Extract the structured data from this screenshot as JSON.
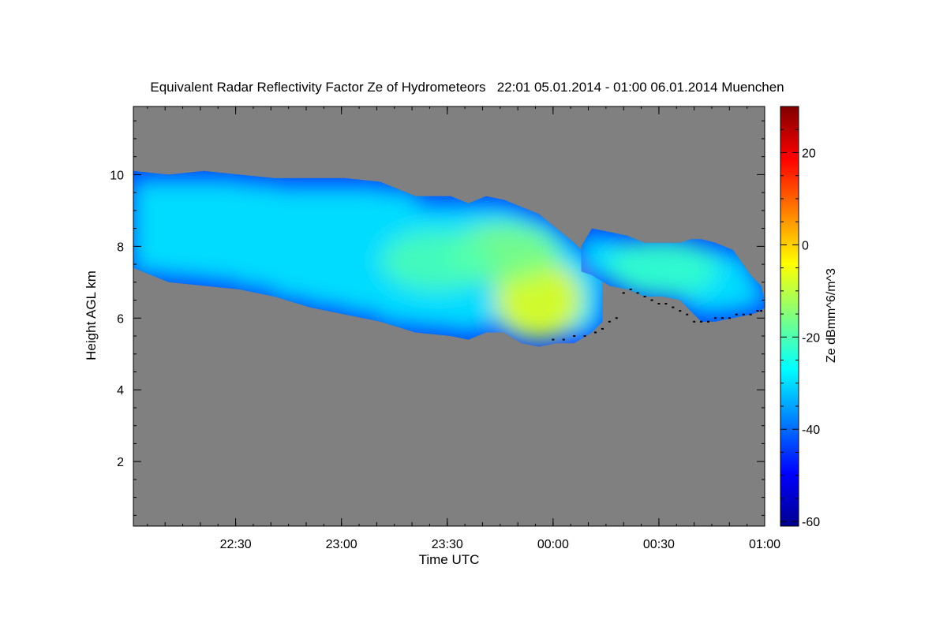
{
  "chart_data": {
    "type": "heatmap",
    "title": "Equivalent Radar Reflectivity Factor Ze of Hydrometeors   22:01 05.01.2014 - 01:00 06.01.2014 Muenchen",
    "xlabel": "Time UTC",
    "ylabel": "Height AGL km",
    "colorbar_label": "Ze dBmm^6/m^3",
    "x_start": "22:01",
    "x_end": "01:00",
    "x_ticks": [
      "22:30",
      "23:00",
      "23:30",
      "00:00",
      "00:30",
      "01:00"
    ],
    "xlim_minutes": [
      0,
      179
    ],
    "x_tick_minutes": [
      29,
      59,
      89,
      119,
      149,
      179
    ],
    "ylim": [
      0.2,
      11.9
    ],
    "y_ticks": [
      2,
      4,
      6,
      8,
      10
    ],
    "y_tick_labels": [
      "2",
      "4",
      "6",
      "8",
      "10"
    ],
    "clim": [
      -61,
      30
    ],
    "colorbar_ticks": [
      -60,
      -40,
      -20,
      0,
      20
    ],
    "colorbar_tick_labels": [
      "-60",
      "-40",
      "-20",
      "0",
      "20"
    ],
    "colormap": "jet",
    "background_color": "#808080",
    "cloud_layers": [
      {
        "name": "main",
        "x": [
          0,
          10,
          20,
          30,
          40,
          50,
          60,
          70,
          80,
          90,
          95,
          100,
          105,
          110,
          115,
          120,
          125,
          130,
          133
        ],
        "top_km": [
          10.1,
          10.0,
          10.1,
          10.0,
          9.9,
          9.9,
          9.9,
          9.8,
          9.4,
          9.4,
          9.2,
          9.4,
          9.3,
          9.1,
          8.9,
          8.5,
          8.1,
          7.6,
          7.5
        ],
        "base_km": [
          7.4,
          7.0,
          6.9,
          6.8,
          6.6,
          6.3,
          6.1,
          5.9,
          5.6,
          5.5,
          5.4,
          5.6,
          5.6,
          5.3,
          5.2,
          5.3,
          5.3,
          5.6,
          5.9
        ]
      },
      {
        "name": "after_midnight",
        "x": [
          127,
          130,
          135,
          140,
          145,
          150,
          155,
          158,
          161,
          165,
          170,
          175,
          178,
          179
        ],
        "top_km": [
          8.0,
          8.5,
          8.4,
          8.3,
          8.1,
          8.1,
          8.1,
          8.2,
          8.2,
          8.1,
          7.9,
          7.2,
          6.9,
          6.5
        ],
        "base_km": [
          7.3,
          7.2,
          6.9,
          6.8,
          6.6,
          6.6,
          6.5,
          6.2,
          5.9,
          5.9,
          6.0,
          6.1,
          6.2,
          6.3
        ]
      }
    ],
    "intensity_cores": [
      {
        "x": 115,
        "height_km": 6.5,
        "ze": -5
      },
      {
        "x": 105,
        "height_km": 7.8,
        "ze": -15
      },
      {
        "x": 86,
        "height_km": 7.6,
        "ze": -20
      },
      {
        "x": 150,
        "height_km": 7.4,
        "ze": -22
      }
    ],
    "ground_echo_dots": {
      "color": "#000000",
      "x": [
        119,
        122,
        125,
        128,
        131,
        133,
        135,
        137,
        139,
        141,
        143,
        145,
        147,
        149,
        151,
        153,
        155,
        157,
        159,
        161,
        163,
        165,
        167,
        169,
        171,
        173,
        175,
        177,
        178
      ],
      "height_km": [
        5.4,
        5.4,
        5.5,
        5.5,
        5.6,
        5.7,
        5.9,
        6.0,
        6.7,
        6.8,
        6.7,
        6.6,
        6.5,
        6.4,
        6.4,
        6.3,
        6.2,
        6.1,
        5.9,
        5.9,
        5.9,
        6.0,
        6.0,
        6.0,
        6.1,
        6.1,
        6.1,
        6.2,
        6.2
      ]
    }
  }
}
